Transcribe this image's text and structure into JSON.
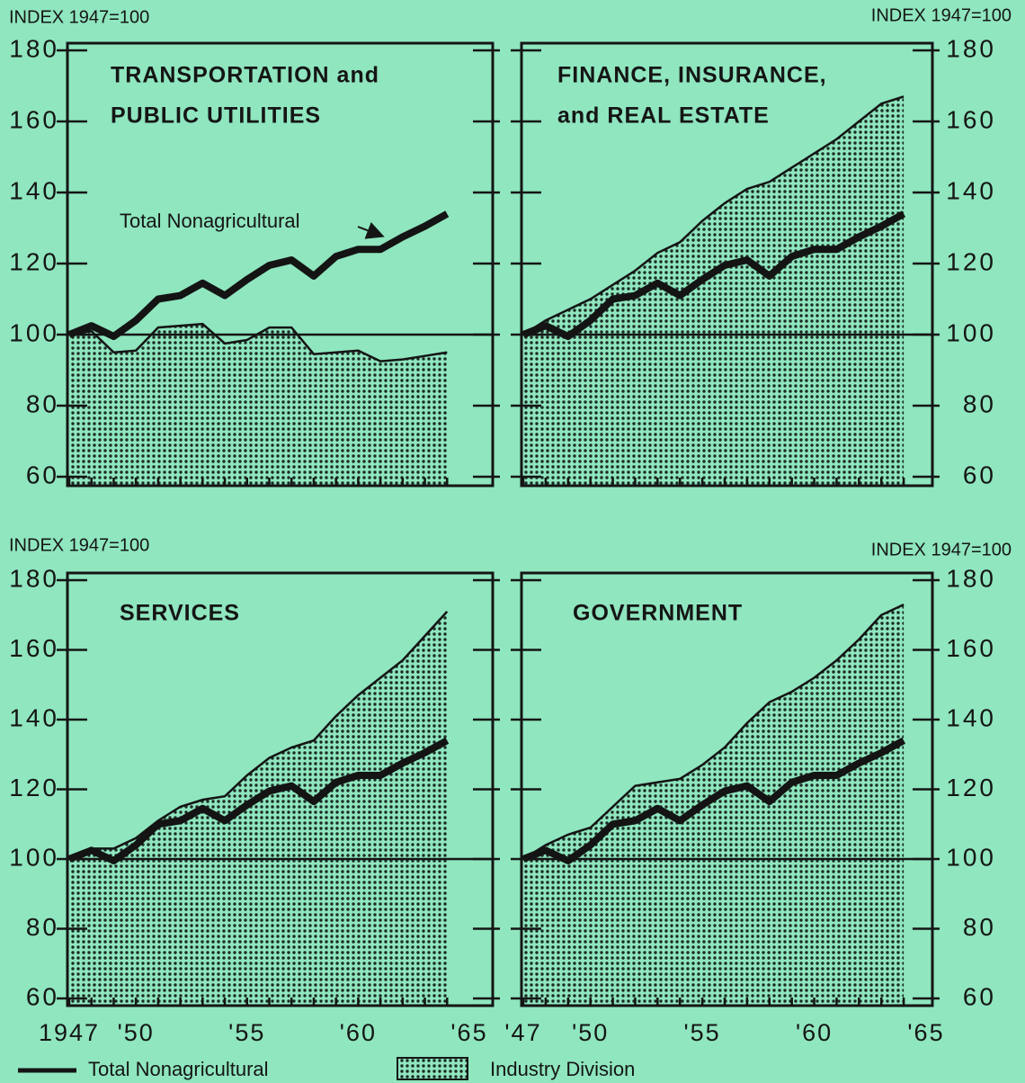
{
  "chart_data": [
    {
      "type": "area-line",
      "title": [
        "TRANSPORTATION and",
        "PUBLIC UTILITIES"
      ],
      "y_label": "INDEX 1947=100",
      "annotation": "Total Nonagricultural",
      "x": [
        1947,
        1948,
        1949,
        1950,
        1951,
        1952,
        1953,
        1954,
        1955,
        1956,
        1957,
        1958,
        1959,
        1960,
        1961,
        1962,
        1963,
        1964
      ],
      "xlim": [
        1947,
        1965
      ],
      "ylim": [
        60,
        180
      ],
      "yticks": [
        60,
        80,
        100,
        120,
        140,
        160,
        180
      ],
      "reference": 100,
      "series": [
        {
          "name": "Total Nonagricultural",
          "color": "#141414",
          "values": [
            100,
            102.5,
            99.5,
            104,
            110,
            111,
            114.5,
            111,
            115.5,
            119.5,
            121,
            116.5,
            122,
            124,
            124,
            127.5,
            130.5,
            134
          ]
        },
        {
          "name": "Industry Division",
          "color": "#141414",
          "values": [
            100,
            101,
            95,
            95.5,
            102,
            102.5,
            103,
            97.5,
            98.5,
            102,
            102,
            94.5,
            95,
            95.5,
            92.5,
            93,
            94,
            95
          ]
        }
      ]
    },
    {
      "type": "area-line",
      "title": [
        "FINANCE, INSURANCE,",
        "and REAL ESTATE"
      ],
      "y_label": "INDEX 1947=100",
      "x": [
        1947,
        1948,
        1949,
        1950,
        1951,
        1952,
        1953,
        1954,
        1955,
        1956,
        1957,
        1958,
        1959,
        1960,
        1961,
        1962,
        1963,
        1964
      ],
      "xlim": [
        1947,
        1965
      ],
      "ylim": [
        60,
        180
      ],
      "yticks": [
        60,
        80,
        100,
        120,
        140,
        160,
        180
      ],
      "reference": 100,
      "series": [
        {
          "name": "Total Nonagricultural",
          "color": "#141414",
          "values": [
            100,
            102.5,
            99.5,
            104,
            110,
            111,
            114.5,
            111,
            115.5,
            119.5,
            121,
            116.5,
            122,
            124,
            124,
            127.5,
            130.5,
            134
          ]
        },
        {
          "name": "Industry Division",
          "color": "#141414",
          "values": [
            100,
            104,
            107,
            110,
            114,
            118,
            123,
            126,
            132,
            137,
            141,
            143,
            147,
            151,
            155,
            160,
            165,
            167
          ]
        }
      ]
    },
    {
      "type": "area-line",
      "title": [
        "SERVICES"
      ],
      "y_label": "INDEX 1947=100",
      "x": [
        1947,
        1948,
        1949,
        1950,
        1951,
        1952,
        1953,
        1954,
        1955,
        1956,
        1957,
        1958,
        1959,
        1960,
        1961,
        1962,
        1963,
        1964
      ],
      "xlim": [
        1947,
        1965
      ],
      "ylim": [
        60,
        180
      ],
      "yticks": [
        60,
        80,
        100,
        120,
        140,
        160,
        180
      ],
      "reference": 100,
      "xticks": [
        {
          "value": 1947,
          "label": "1947"
        },
        {
          "value": 1950,
          "label": "'50"
        },
        {
          "value": 1955,
          "label": "'55"
        },
        {
          "value": 1960,
          "label": "'60"
        },
        {
          "value": 1965,
          "label": "'65"
        }
      ],
      "series": [
        {
          "name": "Total Nonagricultural",
          "color": "#141414",
          "values": [
            100,
            102.5,
            99.5,
            104,
            110,
            111,
            114.5,
            111,
            115.5,
            119.5,
            121,
            116.5,
            122,
            124,
            124,
            127.5,
            130.5,
            134
          ]
        },
        {
          "name": "Industry Division",
          "color": "#141414",
          "values": [
            100,
            103,
            103,
            106,
            111,
            115,
            117,
            118,
            124,
            129,
            132,
            134,
            141,
            147,
            152,
            157,
            164,
            171
          ]
        }
      ]
    },
    {
      "type": "area-line",
      "title": [
        "GOVERNMENT"
      ],
      "y_label": "INDEX 1947=100",
      "x": [
        1947,
        1948,
        1949,
        1950,
        1951,
        1952,
        1953,
        1954,
        1955,
        1956,
        1957,
        1958,
        1959,
        1960,
        1961,
        1962,
        1963,
        1964
      ],
      "xlim": [
        1947,
        1965
      ],
      "ylim": [
        60,
        180
      ],
      "yticks": [
        60,
        80,
        100,
        120,
        140,
        160,
        180
      ],
      "reference": 100,
      "xticks": [
        {
          "value": 1947,
          "label": "'47"
        },
        {
          "value": 1950,
          "label": "'50"
        },
        {
          "value": 1955,
          "label": "'55"
        },
        {
          "value": 1960,
          "label": "'60"
        },
        {
          "value": 1965,
          "label": "'65"
        }
      ],
      "series": [
        {
          "name": "Total Nonagricultural",
          "color": "#141414",
          "values": [
            100,
            102.5,
            99.5,
            104,
            110,
            111,
            114.5,
            111,
            115.5,
            119.5,
            121,
            116.5,
            122,
            124,
            124,
            127.5,
            130.5,
            134
          ]
        },
        {
          "name": "Industry Division",
          "color": "#141414",
          "values": [
            100,
            104,
            107,
            109,
            115,
            121,
            122,
            123,
            127,
            132,
            139,
            145,
            148,
            152,
            157,
            163,
            170,
            173
          ]
        }
      ]
    }
  ]
}
